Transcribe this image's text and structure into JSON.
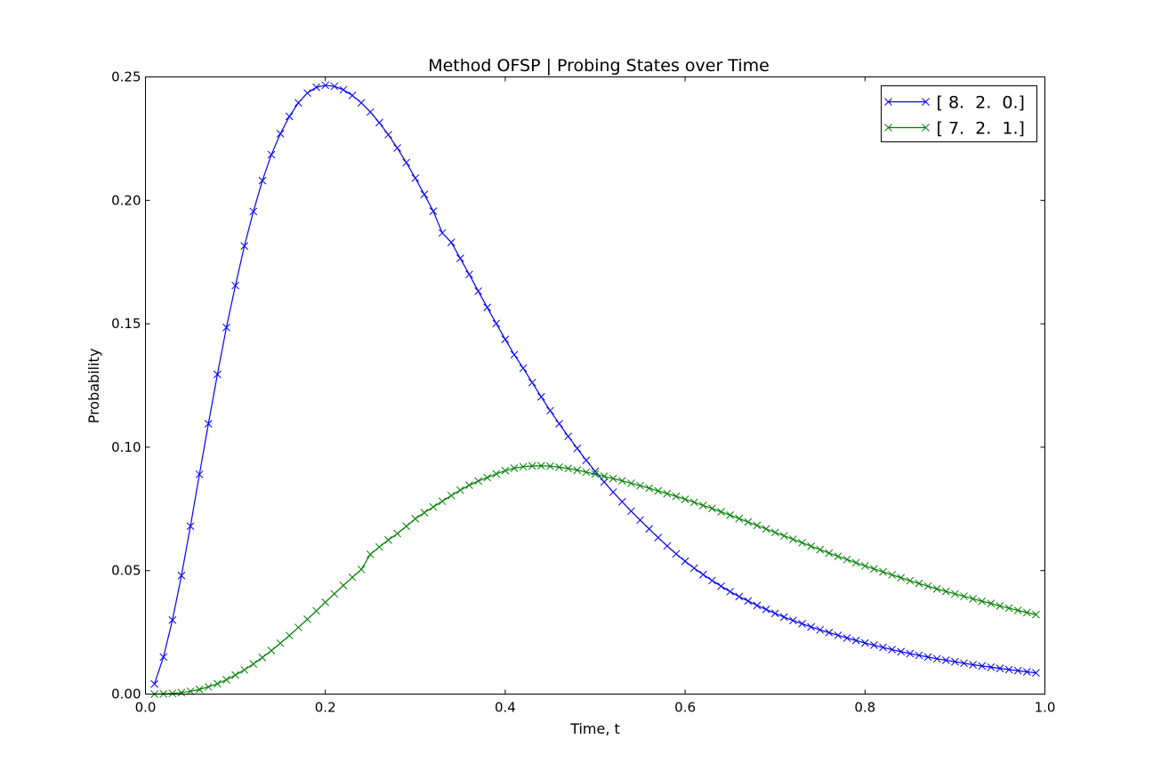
{
  "chart_data": {
    "type": "line",
    "title": "Method OFSP | Probing States over Time",
    "xlabel": "Time, t",
    "ylabel": "Probability",
    "xlim": [
      0.0,
      1.0
    ],
    "ylim": [
      0.0,
      0.25
    ],
    "xticks": [
      "0.0",
      "0.2",
      "0.4",
      "0.6",
      "0.8",
      "1.0"
    ],
    "yticks": [
      "0.00",
      "0.05",
      "0.10",
      "0.15",
      "0.20",
      "0.25"
    ],
    "grid": false,
    "legend_position": "top-right",
    "marker": "x",
    "series": [
      {
        "name": "[ 8.  2.  0.]",
        "color": "#0000ff",
        "x": [
          0.01,
          0.02,
          0.03,
          0.04,
          0.05,
          0.06,
          0.07,
          0.08,
          0.09,
          0.1,
          0.11,
          0.12,
          0.13,
          0.14,
          0.15,
          0.16,
          0.17,
          0.18,
          0.19,
          0.2,
          0.21,
          0.22,
          0.23,
          0.24,
          0.25,
          0.26,
          0.27,
          0.28,
          0.29,
          0.3,
          0.31,
          0.32,
          0.33,
          0.34,
          0.35,
          0.36,
          0.37,
          0.38,
          0.39,
          0.4,
          0.41,
          0.42,
          0.43,
          0.44,
          0.45,
          0.46,
          0.47,
          0.48,
          0.49,
          0.5,
          0.51,
          0.52,
          0.53,
          0.54,
          0.55,
          0.56,
          0.57,
          0.58,
          0.59,
          0.6,
          0.61,
          0.62,
          0.63,
          0.64,
          0.65,
          0.66,
          0.67,
          0.68,
          0.69,
          0.7,
          0.71,
          0.72,
          0.73,
          0.74,
          0.75,
          0.76,
          0.77,
          0.78,
          0.79,
          0.8,
          0.81,
          0.82,
          0.83,
          0.84,
          0.85,
          0.86,
          0.87,
          0.88,
          0.89,
          0.9,
          0.91,
          0.92,
          0.93,
          0.94,
          0.95,
          0.96,
          0.97,
          0.98,
          0.99
        ],
        "y": [
          0.0041,
          0.015,
          0.03,
          0.048,
          0.068,
          0.089,
          0.1095,
          0.1295,
          0.1485,
          0.1655,
          0.1815,
          0.1955,
          0.208,
          0.2185,
          0.227,
          0.234,
          0.2395,
          0.2435,
          0.2458,
          0.2466,
          0.2462,
          0.2448,
          0.2425,
          0.2395,
          0.2358,
          0.2315,
          0.2266,
          0.2212,
          0.2153,
          0.209,
          0.2024,
          0.1956,
          0.1868,
          0.183,
          0.1765,
          0.17,
          0.1632,
          0.1566,
          0.1501,
          0.1437,
          0.1375,
          0.132,
          0.1262,
          0.1204,
          0.1148,
          0.1095,
          0.1044,
          0.0995,
          0.0947,
          0.0902,
          0.0859,
          0.0818,
          0.0779,
          0.0741,
          0.0705,
          0.0669,
          0.0634,
          0.06,
          0.0568,
          0.0538,
          0.051,
          0.0484,
          0.046,
          0.0437,
          0.0415,
          0.0395,
          0.0377,
          0.0359,
          0.0343,
          0.0327,
          0.0312,
          0.0298,
          0.0285,
          0.0272,
          0.026,
          0.0249,
          0.0238,
          0.0227,
          0.0217,
          0.0207,
          0.0198,
          0.0189,
          0.018,
          0.0172,
          0.0164,
          0.0157,
          0.015,
          0.0143,
          0.0137,
          0.0131,
          0.0125,
          0.0119,
          0.0114,
          0.0109,
          0.0104,
          0.0099,
          0.0095,
          0.009,
          0.0086
        ]
      },
      {
        "name": "[ 7.  2.  1.]",
        "color": "#008000",
        "x": [
          0.01,
          0.02,
          0.03,
          0.04,
          0.05,
          0.06,
          0.07,
          0.08,
          0.09,
          0.1,
          0.11,
          0.12,
          0.13,
          0.14,
          0.15,
          0.16,
          0.17,
          0.18,
          0.19,
          0.2,
          0.21,
          0.22,
          0.23,
          0.24,
          0.25,
          0.26,
          0.27,
          0.28,
          0.29,
          0.3,
          0.31,
          0.32,
          0.33,
          0.34,
          0.35,
          0.36,
          0.37,
          0.38,
          0.39,
          0.4,
          0.41,
          0.42,
          0.43,
          0.44,
          0.45,
          0.46,
          0.47,
          0.48,
          0.49,
          0.5,
          0.51,
          0.52,
          0.53,
          0.54,
          0.55,
          0.56,
          0.57,
          0.58,
          0.59,
          0.6,
          0.61,
          0.62,
          0.63,
          0.64,
          0.65,
          0.66,
          0.67,
          0.68,
          0.69,
          0.7,
          0.71,
          0.72,
          0.73,
          0.74,
          0.75,
          0.76,
          0.77,
          0.78,
          0.79,
          0.8,
          0.81,
          0.82,
          0.83,
          0.84,
          0.85,
          0.86,
          0.87,
          0.88,
          0.89,
          0.9,
          0.91,
          0.92,
          0.93,
          0.94,
          0.95,
          0.96,
          0.97,
          0.98,
          0.99
        ],
        "y": [
          0.0,
          0.0001,
          0.0003,
          0.0006,
          0.0011,
          0.0019,
          0.0029,
          0.0042,
          0.0058,
          0.0077,
          0.0098,
          0.0122,
          0.0148,
          0.0176,
          0.0206,
          0.0237,
          0.027,
          0.0303,
          0.0337,
          0.0372,
          0.0406,
          0.044,
          0.0473,
          0.0505,
          0.0566,
          0.0596,
          0.0624,
          0.065,
          0.068,
          0.071,
          0.0735,
          0.0758,
          0.0781,
          0.0804,
          0.0826,
          0.0846,
          0.0863,
          0.0877,
          0.0892,
          0.0905,
          0.0915,
          0.0921,
          0.0924,
          0.0925,
          0.0923,
          0.0919,
          0.0914,
          0.0907,
          0.0899,
          0.0891,
          0.0882,
          0.0873,
          0.0864,
          0.0854,
          0.0844,
          0.0834,
          0.0823,
          0.0812,
          0.0801,
          0.0789,
          0.0777,
          0.0764,
          0.0752,
          0.0738,
          0.0725,
          0.0711,
          0.0697,
          0.0683,
          0.0669,
          0.0655,
          0.0641,
          0.0627,
          0.0613,
          0.0599,
          0.0585,
          0.0571,
          0.0558,
          0.0545,
          0.0532,
          0.0519,
          0.0507,
          0.0495,
          0.0483,
          0.0471,
          0.0459,
          0.0448,
          0.0437,
          0.0426,
          0.0416,
          0.0406,
          0.0396,
          0.0386,
          0.0376,
          0.0367,
          0.0357,
          0.0348,
          0.0339,
          0.033,
          0.0322
        ]
      }
    ]
  }
}
